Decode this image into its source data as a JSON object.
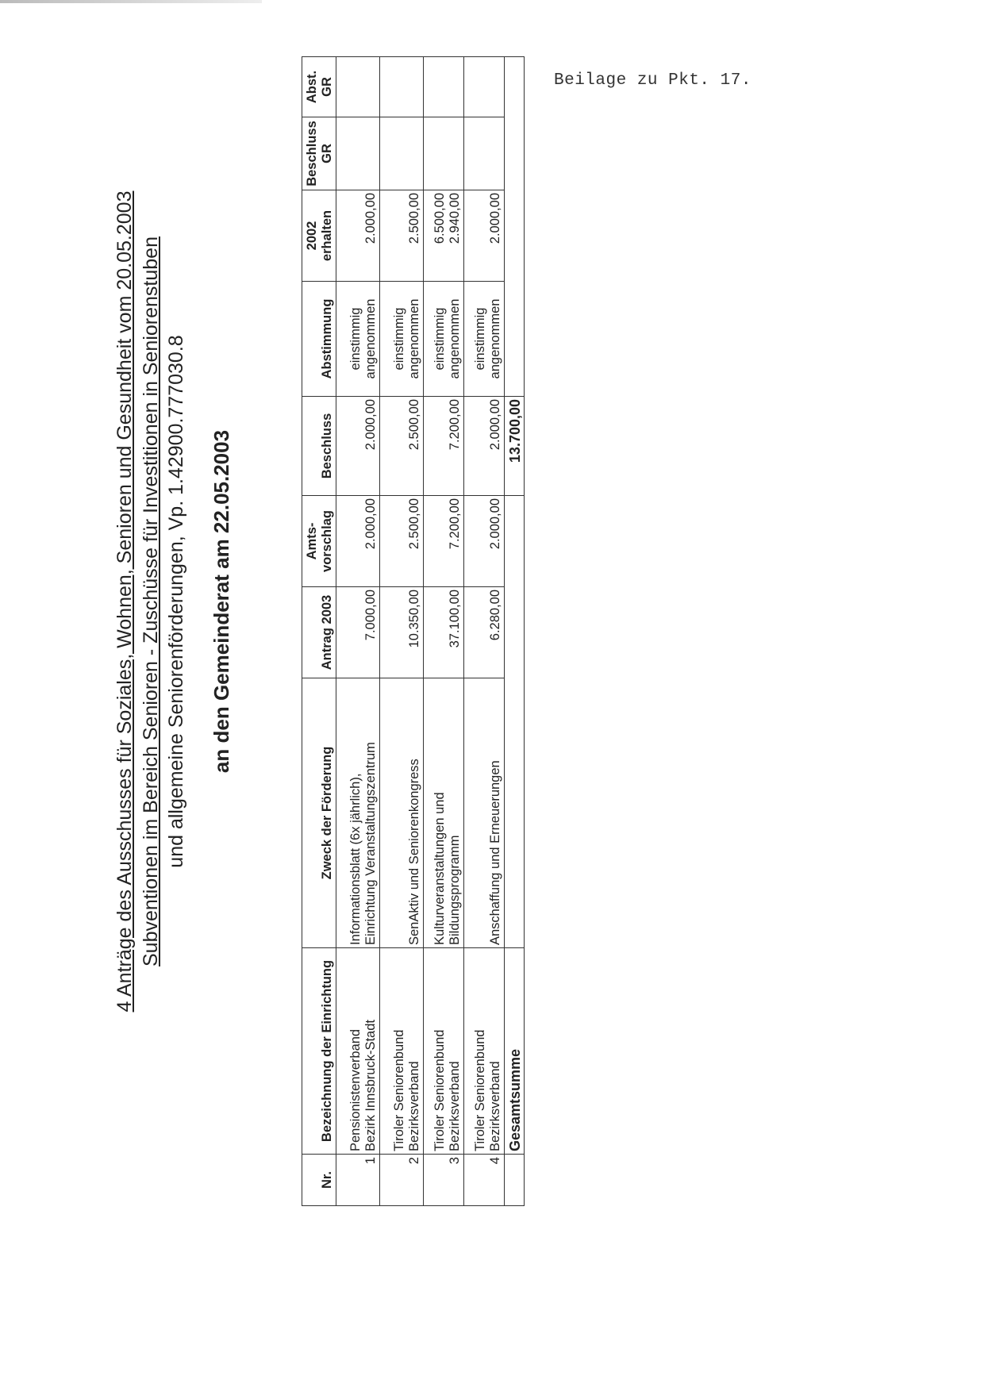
{
  "annex_note": "Beilage zu Pkt. 17.",
  "title": {
    "line1": "4 Anträge des Ausschusses für Soziales, Wohnen, Senioren und Gesundheit vom 20.05.2003",
    "line2": "Subventionen im Bereich Senioren - Zuschüsse für Investitionen in Seniorenstuben",
    "line3": "und allgemeine Seniorenförderungen, Vp. 1.42900.777030.8",
    "line4": "an den Gemeinderat am 22.05.2003"
  },
  "table": {
    "headers": {
      "nr": "Nr.",
      "bezeichnung": "Bezeichnung der Einrichtung",
      "zweck": "Zweck der Förderung",
      "antrag": "Antrag 2003",
      "amts_1": "Amts-",
      "amts_2": "vorschlag",
      "beschluss": "Beschluss",
      "abstimmung": "Abstimmung",
      "erhalten_1": "2002",
      "erhalten_2": "erhalten",
      "beschluss_gr_1": "Beschluss",
      "beschluss_gr_2": "GR",
      "abst_gr_1": "Abst.",
      "abst_gr_2": "GR"
    },
    "rows": [
      {
        "nr": "1",
        "bez1": "Pensionistenverband",
        "bez2": "Bezirk Innsbruck-Stadt",
        "zweck1": "Informationsblatt (6x jährlich),",
        "zweck2": "Einrichtung Veranstaltungszentrum",
        "antrag": "7.000,00",
        "amts": "2.000,00",
        "beschluss": "2.000,00",
        "abst1": "einstimmig",
        "abst2": "angenommen",
        "erh1": "",
        "erh2": "2.000,00",
        "beschluss_gr": "",
        "abst_gr": ""
      },
      {
        "nr": "2",
        "bez1": "Tiroler Seniorenbund",
        "bez2": "Bezirksverband",
        "zweck1": "",
        "zweck2": "SenAktiv und Seniorenkongress",
        "antrag": "10.350,00",
        "amts": "2.500,00",
        "beschluss": "2.500,00",
        "abst1": "einstimmig",
        "abst2": "angenommen",
        "erh1": "",
        "erh2": "2.500,00",
        "beschluss_gr": "",
        "abst_gr": ""
      },
      {
        "nr": "3",
        "bez1": "Tiroler Seniorenbund",
        "bez2": "Bezirksverband",
        "zweck1": "Kulturveranstaltungen und",
        "zweck2": "Bildungsprogramm",
        "antrag": "37.100,00",
        "amts": "7.200,00",
        "beschluss": "7.200,00",
        "abst1": "einstimmig",
        "abst2": "angenommen",
        "erh1": "6.500,00",
        "erh2": "2.940,00",
        "beschluss_gr": "",
        "abst_gr": ""
      },
      {
        "nr": "4",
        "bez1": "Tiroler Seniorenbund",
        "bez2": "Bezirksverband",
        "zweck1": "",
        "zweck2": "Anschaffung und Erneuerungen",
        "antrag": "6.280,00",
        "amts": "2.000,00",
        "beschluss": "2.000,00",
        "abst1": "einstimmig",
        "abst2": "angenommen",
        "erh1": "",
        "erh2": "2.000,00",
        "beschluss_gr": "",
        "abst_gr": ""
      }
    ],
    "total": {
      "label": "Gesamtsumme",
      "beschluss": "13.700,00"
    }
  }
}
